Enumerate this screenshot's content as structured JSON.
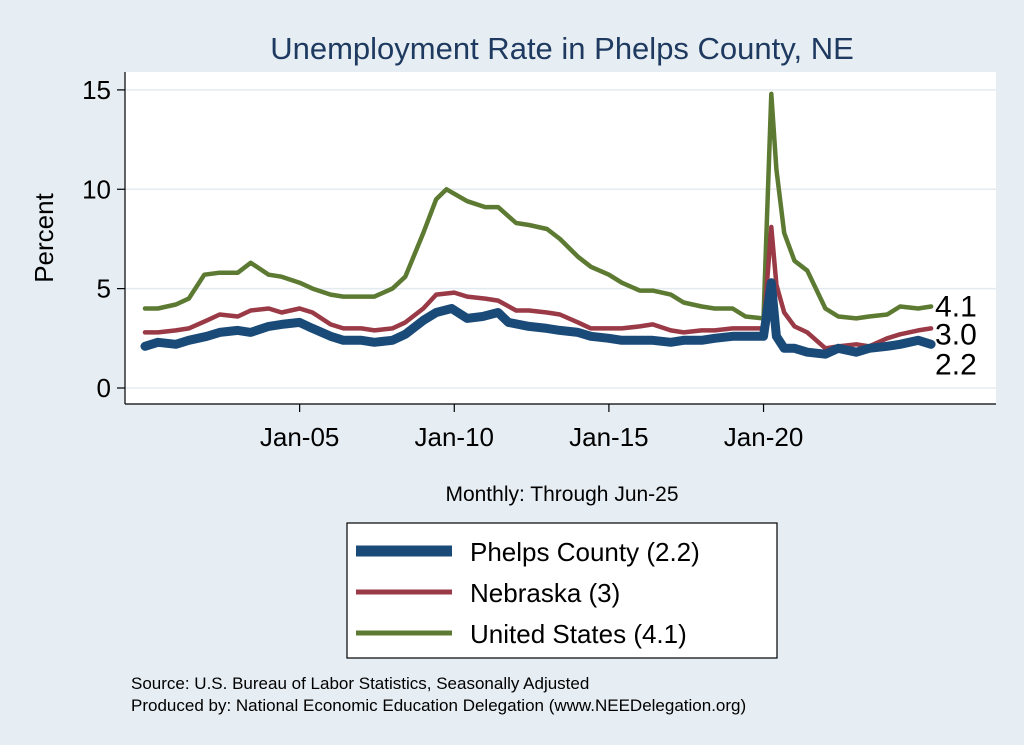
{
  "chart_data": {
    "type": "line",
    "title": "Unemployment Rate in Phelps  County, NE",
    "ylabel": "Percent",
    "xnote": "Monthly: Through Jun-25",
    "ylim": [
      0,
      15.9
    ],
    "yticks": [
      0,
      5,
      10,
      15
    ],
    "xticks": [
      {
        "label": "Jan-05",
        "year": 2005
      },
      {
        "label": "Jan-10",
        "year": 2010
      },
      {
        "label": "Jan-15",
        "year": 2015
      },
      {
        "label": "Jan-20",
        "year": 2020
      }
    ],
    "xrange": [
      "Jan-2000",
      "Jun-2025"
    ],
    "grid": true,
    "legend_position": "bottom",
    "series": [
      {
        "name": "Phelps  County (2.2)",
        "color": "#1a4a78",
        "end_label": "2.2",
        "points": [
          [
            "2000-01",
            2.1
          ],
          [
            "2000-06",
            2.3
          ],
          [
            "2001-01",
            2.2
          ],
          [
            "2001-06",
            2.4
          ],
          [
            "2002-01",
            2.6
          ],
          [
            "2002-06",
            2.8
          ],
          [
            "2003-01",
            2.9
          ],
          [
            "2003-06",
            2.8
          ],
          [
            "2004-01",
            3.1
          ],
          [
            "2004-06",
            3.2
          ],
          [
            "2005-01",
            3.3
          ],
          [
            "2005-06",
            3.0
          ],
          [
            "2006-01",
            2.6
          ],
          [
            "2006-06",
            2.4
          ],
          [
            "2007-01",
            2.4
          ],
          [
            "2007-06",
            2.3
          ],
          [
            "2008-01",
            2.4
          ],
          [
            "2008-06",
            2.7
          ],
          [
            "2009-01",
            3.4
          ],
          [
            "2009-06",
            3.8
          ],
          [
            "2009-12",
            4.0
          ],
          [
            "2010-06",
            3.5
          ],
          [
            "2010-12",
            3.6
          ],
          [
            "2011-06",
            3.8
          ],
          [
            "2011-10",
            3.3
          ],
          [
            "2012-06",
            3.1
          ],
          [
            "2013-01",
            3.0
          ],
          [
            "2013-06",
            2.9
          ],
          [
            "2014-01",
            2.8
          ],
          [
            "2014-06",
            2.6
          ],
          [
            "2015-01",
            2.5
          ],
          [
            "2015-06",
            2.4
          ],
          [
            "2016-01",
            2.4
          ],
          [
            "2016-06",
            2.4
          ],
          [
            "2017-01",
            2.3
          ],
          [
            "2017-06",
            2.4
          ],
          [
            "2018-01",
            2.4
          ],
          [
            "2018-06",
            2.5
          ],
          [
            "2019-01",
            2.6
          ],
          [
            "2019-06",
            2.6
          ],
          [
            "2020-01",
            2.6
          ],
          [
            "2020-04",
            5.3
          ],
          [
            "2020-06",
            2.6
          ],
          [
            "2020-09",
            2.0
          ],
          [
            "2021-01",
            2.0
          ],
          [
            "2021-06",
            1.8
          ],
          [
            "2022-01",
            1.7
          ],
          [
            "2022-06",
            2.0
          ],
          [
            "2023-01",
            1.8
          ],
          [
            "2023-06",
            2.0
          ],
          [
            "2024-01",
            2.1
          ],
          [
            "2024-06",
            2.2
          ],
          [
            "2025-01",
            2.4
          ],
          [
            "2025-06",
            2.2
          ]
        ]
      },
      {
        "name": "Nebraska (3)",
        "color": "#9a3a46",
        "end_label": "3.0",
        "points": [
          [
            "2000-01",
            2.8
          ],
          [
            "2000-06",
            2.8
          ],
          [
            "2001-01",
            2.9
          ],
          [
            "2001-06",
            3.0
          ],
          [
            "2002-01",
            3.4
          ],
          [
            "2002-06",
            3.7
          ],
          [
            "2003-01",
            3.6
          ],
          [
            "2003-06",
            3.9
          ],
          [
            "2004-01",
            4.0
          ],
          [
            "2004-06",
            3.8
          ],
          [
            "2005-01",
            4.0
          ],
          [
            "2005-06",
            3.8
          ],
          [
            "2006-01",
            3.2
          ],
          [
            "2006-06",
            3.0
          ],
          [
            "2007-01",
            3.0
          ],
          [
            "2007-06",
            2.9
          ],
          [
            "2008-01",
            3.0
          ],
          [
            "2008-06",
            3.3
          ],
          [
            "2009-01",
            4.0
          ],
          [
            "2009-06",
            4.7
          ],
          [
            "2010-01",
            4.8
          ],
          [
            "2010-06",
            4.6
          ],
          [
            "2011-01",
            4.5
          ],
          [
            "2011-06",
            4.4
          ],
          [
            "2012-01",
            3.9
          ],
          [
            "2012-06",
            3.9
          ],
          [
            "2013-01",
            3.8
          ],
          [
            "2013-06",
            3.7
          ],
          [
            "2014-01",
            3.3
          ],
          [
            "2014-06",
            3.0
          ],
          [
            "2015-01",
            3.0
          ],
          [
            "2015-06",
            3.0
          ],
          [
            "2016-01",
            3.1
          ],
          [
            "2016-06",
            3.2
          ],
          [
            "2017-01",
            2.9
          ],
          [
            "2017-06",
            2.8
          ],
          [
            "2018-01",
            2.9
          ],
          [
            "2018-06",
            2.9
          ],
          [
            "2019-01",
            3.0
          ],
          [
            "2019-06",
            3.0
          ],
          [
            "2020-01",
            3.0
          ],
          [
            "2020-04",
            8.1
          ],
          [
            "2020-06",
            5.2
          ],
          [
            "2020-09",
            3.8
          ],
          [
            "2021-01",
            3.1
          ],
          [
            "2021-06",
            2.8
          ],
          [
            "2022-01",
            2.0
          ],
          [
            "2022-06",
            2.1
          ],
          [
            "2023-01",
            2.2
          ],
          [
            "2023-06",
            2.1
          ],
          [
            "2024-01",
            2.5
          ],
          [
            "2024-06",
            2.7
          ],
          [
            "2025-01",
            2.9
          ],
          [
            "2025-06",
            3.0
          ]
        ]
      },
      {
        "name": "United States (4.1)",
        "color": "#5d7a32",
        "end_label": "4.1",
        "points": [
          [
            "2000-01",
            4.0
          ],
          [
            "2000-06",
            4.0
          ],
          [
            "2001-01",
            4.2
          ],
          [
            "2001-06",
            4.5
          ],
          [
            "2001-12",
            5.7
          ],
          [
            "2002-06",
            5.8
          ],
          [
            "2003-01",
            5.8
          ],
          [
            "2003-06",
            6.3
          ],
          [
            "2004-01",
            5.7
          ],
          [
            "2004-06",
            5.6
          ],
          [
            "2005-01",
            5.3
          ],
          [
            "2005-06",
            5.0
          ],
          [
            "2006-01",
            4.7
          ],
          [
            "2006-06",
            4.6
          ],
          [
            "2007-01",
            4.6
          ],
          [
            "2007-06",
            4.6
          ],
          [
            "2008-01",
            5.0
          ],
          [
            "2008-06",
            5.6
          ],
          [
            "2009-01",
            7.8
          ],
          [
            "2009-06",
            9.5
          ],
          [
            "2009-10",
            10.0
          ],
          [
            "2010-06",
            9.4
          ],
          [
            "2011-01",
            9.1
          ],
          [
            "2011-06",
            9.1
          ],
          [
            "2012-01",
            8.3
          ],
          [
            "2012-06",
            8.2
          ],
          [
            "2013-01",
            8.0
          ],
          [
            "2013-06",
            7.5
          ],
          [
            "2014-01",
            6.6
          ],
          [
            "2014-06",
            6.1
          ],
          [
            "2015-01",
            5.7
          ],
          [
            "2015-06",
            5.3
          ],
          [
            "2016-01",
            4.9
          ],
          [
            "2016-06",
            4.9
          ],
          [
            "2017-01",
            4.7
          ],
          [
            "2017-06",
            4.3
          ],
          [
            "2018-01",
            4.1
          ],
          [
            "2018-06",
            4.0
          ],
          [
            "2019-01",
            4.0
          ],
          [
            "2019-06",
            3.6
          ],
          [
            "2020-01",
            3.5
          ],
          [
            "2020-04",
            14.8
          ],
          [
            "2020-06",
            11.0
          ],
          [
            "2020-09",
            7.8
          ],
          [
            "2021-01",
            6.4
          ],
          [
            "2021-06",
            5.9
          ],
          [
            "2022-01",
            4.0
          ],
          [
            "2022-06",
            3.6
          ],
          [
            "2023-01",
            3.5
          ],
          [
            "2023-06",
            3.6
          ],
          [
            "2024-01",
            3.7
          ],
          [
            "2024-06",
            4.1
          ],
          [
            "2025-01",
            4.0
          ],
          [
            "2025-06",
            4.1
          ]
        ]
      }
    ]
  },
  "legend": {
    "items": [
      "Phelps  County (2.2)",
      "Nebraska (3)",
      "United States (4.1)"
    ]
  },
  "footer": {
    "source": "Source: U.S. Bureau of Labor Statistics, Seasonally Adjusted",
    "produced": "Produced by: National Economic Education Delegation (www.NEEDelegation.org)"
  }
}
